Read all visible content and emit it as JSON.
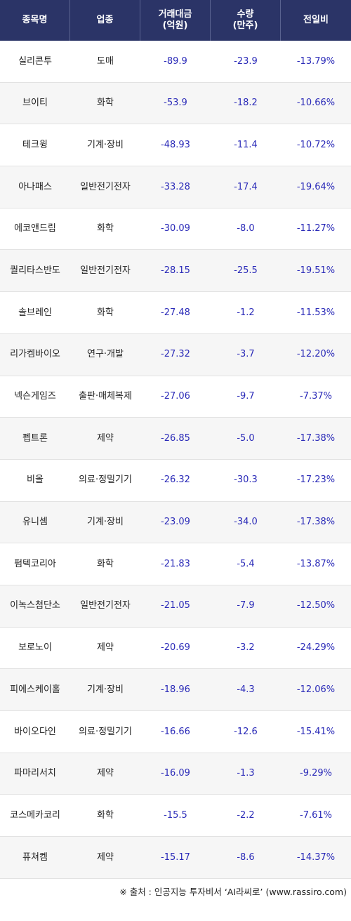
{
  "header": {
    "col_name": "종목명",
    "col_sector": "업종",
    "col_value": "거래대금\n(억원)",
    "col_volume": "수량\n(만주)",
    "col_change": "전일비"
  },
  "rows": [
    {
      "name": "실리콘투",
      "sector": "도매",
      "value": "-89.9",
      "volume": "-23.9",
      "change": "-13.79%"
    },
    {
      "name": "브이티",
      "sector": "화학",
      "value": "-53.9",
      "volume": "-18.2",
      "change": "-10.66%"
    },
    {
      "name": "테크윙",
      "sector": "기계·장비",
      "value": "-48.93",
      "volume": "-11.4",
      "change": "-10.72%"
    },
    {
      "name": "아나패스",
      "sector": "일반전기전자",
      "value": "-33.28",
      "volume": "-17.4",
      "change": "-19.64%"
    },
    {
      "name": "에코앤드림",
      "sector": "화학",
      "value": "-30.09",
      "volume": "-8.0",
      "change": "-11.27%"
    },
    {
      "name": "퀄리타스반도",
      "sector": "일반전기전자",
      "value": "-28.15",
      "volume": "-25.5",
      "change": "-19.51%"
    },
    {
      "name": "솔브레인",
      "sector": "화학",
      "value": "-27.48",
      "volume": "-1.2",
      "change": "-11.53%"
    },
    {
      "name": "리가켐바이오",
      "sector": "연구·개발",
      "value": "-27.32",
      "volume": "-3.7",
      "change": "-12.20%"
    },
    {
      "name": "넥슨게임즈",
      "sector": "출판·매체복제",
      "value": "-27.06",
      "volume": "-9.7",
      "change": "-7.37%"
    },
    {
      "name": "펩트론",
      "sector": "제약",
      "value": "-26.85",
      "volume": "-5.0",
      "change": "-17.38%"
    },
    {
      "name": "비올",
      "sector": "의료·정밀기기",
      "value": "-26.32",
      "volume": "-30.3",
      "change": "-17.23%"
    },
    {
      "name": "유니셈",
      "sector": "기계·장비",
      "value": "-23.09",
      "volume": "-34.0",
      "change": "-17.38%"
    },
    {
      "name": "펌텍코리아",
      "sector": "화학",
      "value": "-21.83",
      "volume": "-5.4",
      "change": "-13.87%"
    },
    {
      "name": "이녹스첨단소",
      "sector": "일반전기전자",
      "value": "-21.05",
      "volume": "-7.9",
      "change": "-12.50%"
    },
    {
      "name": "보로노이",
      "sector": "제약",
      "value": "-20.69",
      "volume": "-3.2",
      "change": "-24.29%"
    },
    {
      "name": "피에스케이홀",
      "sector": "기계·장비",
      "value": "-18.96",
      "volume": "-4.3",
      "change": "-12.06%"
    },
    {
      "name": "바이오다인",
      "sector": "의료·정밀기기",
      "value": "-16.66",
      "volume": "-12.6",
      "change": "-15.41%"
    },
    {
      "name": "파마리서치",
      "sector": "제약",
      "value": "-16.09",
      "volume": "-1.3",
      "change": "-9.29%"
    },
    {
      "name": "코스메카코리",
      "sector": "화학",
      "value": "-15.5",
      "volume": "-2.2",
      "change": "-7.61%"
    },
    {
      "name": "퓨쳐켐",
      "sector": "제약",
      "value": "-15.17",
      "volume": "-8.6",
      "change": "-14.37%"
    }
  ],
  "source": "※ 출처 : 인공지능 투자비서 ‘AI라씨로’ (www.rassiro.com)",
  "colors": {
    "header_bg": "#2b3467",
    "number_text": "#2a2ab8",
    "alt_row_bg": "#f6f6f6"
  }
}
